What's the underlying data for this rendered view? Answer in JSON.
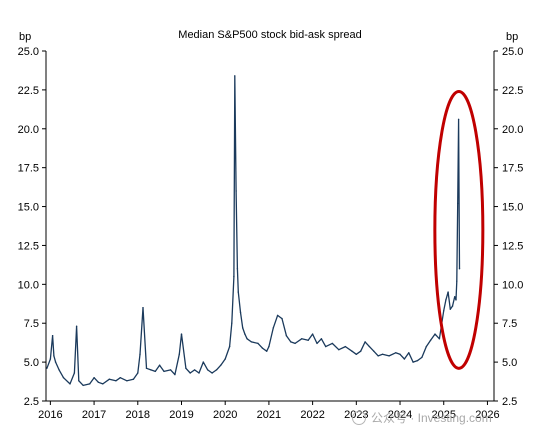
{
  "chart_data": {
    "type": "line",
    "title": "Median S&P500 stock bid-ask spread",
    "y_unit_left": "bp",
    "y_unit_right": "bp",
    "xlabel": "",
    "ylabel": "",
    "ylim": [
      2.5,
      25.0
    ],
    "xlim": [
      2015.9,
      2026.15
    ],
    "y_ticks": [
      "2.5",
      "5.0",
      "7.5",
      "10.0",
      "12.5",
      "15.0",
      "17.5",
      "20.0",
      "22.5",
      "25.0"
    ],
    "x_ticks": [
      "2016",
      "2017",
      "2018",
      "2019",
      "2020",
      "2021",
      "2022",
      "2023",
      "2024",
      "2025",
      "2026"
    ],
    "grid": false,
    "legend": "none",
    "series": [
      {
        "color": "#1b3a5c",
        "x": [
          2015.92,
          2016.0,
          2016.05,
          2016.08,
          2016.12,
          2016.2,
          2016.3,
          2016.45,
          2016.55,
          2016.6,
          2016.65,
          2016.75,
          2016.9,
          2017.0,
          2017.1,
          2017.2,
          2017.35,
          2017.5,
          2017.6,
          2017.75,
          2017.9,
          2018.0,
          2018.05,
          2018.12,
          2018.2,
          2018.3,
          2018.4,
          2018.5,
          2018.6,
          2018.75,
          2018.85,
          2018.95,
          2019.0,
          2019.1,
          2019.2,
          2019.3,
          2019.4,
          2019.5,
          2019.6,
          2019.7,
          2019.8,
          2019.9,
          2020.0,
          2020.1,
          2020.15,
          2020.2,
          2020.22,
          2020.25,
          2020.28,
          2020.3,
          2020.35,
          2020.4,
          2020.45,
          2020.5,
          2020.6,
          2020.75,
          2020.85,
          2020.95,
          2021.0,
          2021.1,
          2021.2,
          2021.3,
          2021.4,
          2021.5,
          2021.6,
          2021.75,
          2021.9,
          2022.0,
          2022.1,
          2022.2,
          2022.3,
          2022.45,
          2022.6,
          2022.75,
          2022.9,
          2023.0,
          2023.1,
          2023.2,
          2023.3,
          2023.4,
          2023.5,
          2023.6,
          2023.75,
          2023.9,
          2024.0,
          2024.1,
          2024.2,
          2024.3,
          2024.4,
          2024.5,
          2024.6,
          2024.7,
          2024.8,
          2024.9,
          2025.0,
          2025.05,
          2025.1,
          2025.15,
          2025.2,
          2025.25,
          2025.28,
          2025.3,
          2025.32,
          2025.34,
          2025.36
        ],
        "values": [
          4.6,
          5.2,
          6.7,
          5.4,
          5.0,
          4.5,
          4.0,
          3.6,
          4.3,
          7.3,
          3.8,
          3.5,
          3.6,
          4.0,
          3.7,
          3.6,
          3.9,
          3.8,
          4.0,
          3.8,
          3.9,
          4.3,
          5.5,
          8.5,
          4.6,
          4.5,
          4.4,
          4.8,
          4.4,
          4.5,
          4.2,
          5.5,
          6.8,
          4.6,
          4.3,
          4.5,
          4.3,
          5.0,
          4.5,
          4.3,
          4.5,
          4.8,
          5.2,
          6.0,
          7.5,
          10.5,
          23.4,
          16.0,
          11.0,
          9.5,
          8.2,
          7.2,
          6.8,
          6.5,
          6.3,
          6.2,
          5.9,
          5.7,
          6.0,
          7.2,
          8.0,
          7.8,
          6.7,
          6.3,
          6.2,
          6.5,
          6.4,
          6.8,
          6.2,
          6.5,
          6.0,
          6.2,
          5.8,
          6.0,
          5.7,
          5.5,
          5.7,
          6.3,
          6.0,
          5.7,
          5.4,
          5.5,
          5.4,
          5.6,
          5.5,
          5.2,
          5.6,
          5.0,
          5.1,
          5.3,
          6.0,
          6.4,
          6.8,
          6.5,
          8.3,
          9.0,
          9.5,
          8.4,
          8.6,
          9.2,
          9.0,
          10.2,
          15.2,
          20.6,
          11.0
        ]
      }
    ],
    "annotations": [
      {
        "shape": "ellipse",
        "color": "#c00000",
        "around_x": 2025.3,
        "around_y_range": [
          4.6,
          22.4
        ]
      }
    ]
  },
  "watermark": {
    "text": "公众号 · Investing.com"
  }
}
